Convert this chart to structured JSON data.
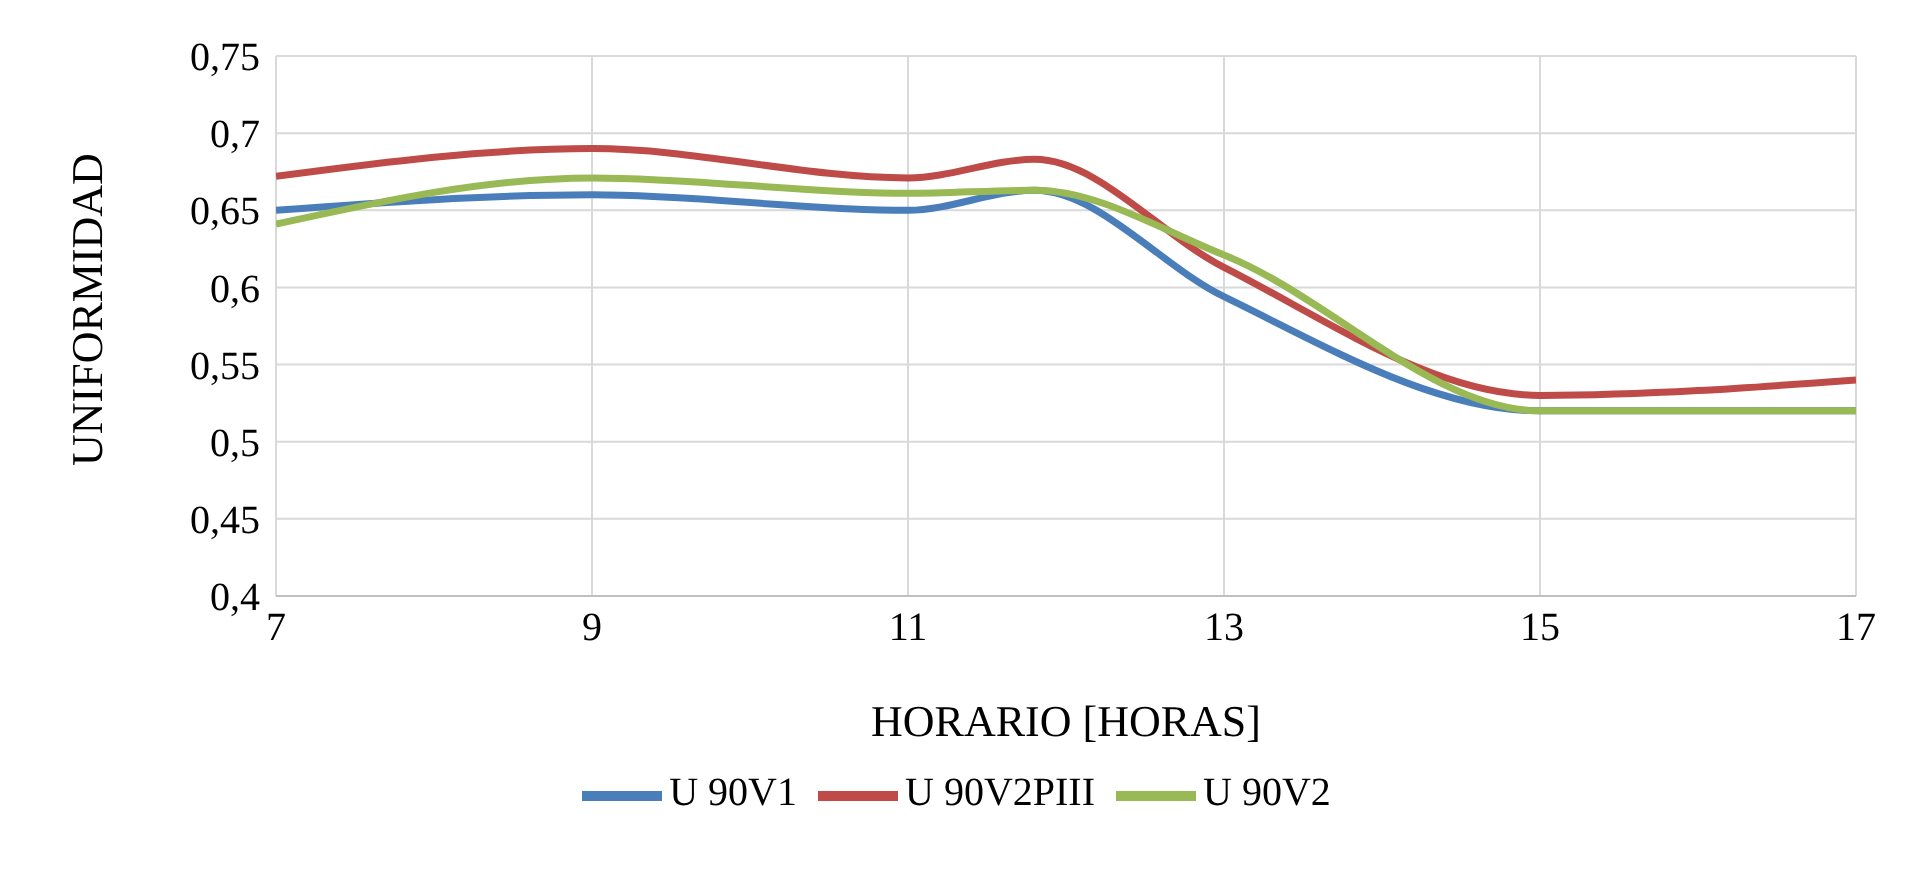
{
  "chart_data": {
    "type": "line",
    "xlabel": "HORARIO [HORAS]",
    "ylabel": "UNIFORMIDAD",
    "x": [
      7,
      9,
      11,
      11.8,
      13,
      15,
      17
    ],
    "series": [
      {
        "name": "U 90V1",
        "color": "#4a7ebb",
        "values": [
          0.65,
          0.66,
          0.65,
          0.663,
          0.594,
          0.52,
          0.52
        ]
      },
      {
        "name": "U 90V2PIII",
        "color": "#be4b48",
        "values": [
          0.672,
          0.69,
          0.671,
          0.683,
          0.613,
          0.53,
          0.54
        ]
      },
      {
        "name": "U 90V2",
        "color": "#98b954",
        "values": [
          0.641,
          0.671,
          0.661,
          0.663,
          0.621,
          0.52,
          0.52
        ]
      }
    ],
    "xlim": [
      7,
      17
    ],
    "xticks": [
      7,
      9,
      11,
      13,
      15,
      17
    ],
    "ylim": [
      0.4,
      0.75
    ],
    "yticks": [
      {
        "value": 0.4,
        "label": "0,4"
      },
      {
        "value": 0.45,
        "label": "0,45"
      },
      {
        "value": 0.5,
        "label": "0,5"
      },
      {
        "value": 0.55,
        "label": "0,55"
      },
      {
        "value": 0.6,
        "label": "0,6"
      },
      {
        "value": 0.65,
        "label": "0,65"
      },
      {
        "value": 0.7,
        "label": "0,7"
      },
      {
        "value": 0.75,
        "label": "0,75"
      }
    ],
    "grid": true,
    "legend": "bottom",
    "marker": "none",
    "line_style": "solid"
  }
}
